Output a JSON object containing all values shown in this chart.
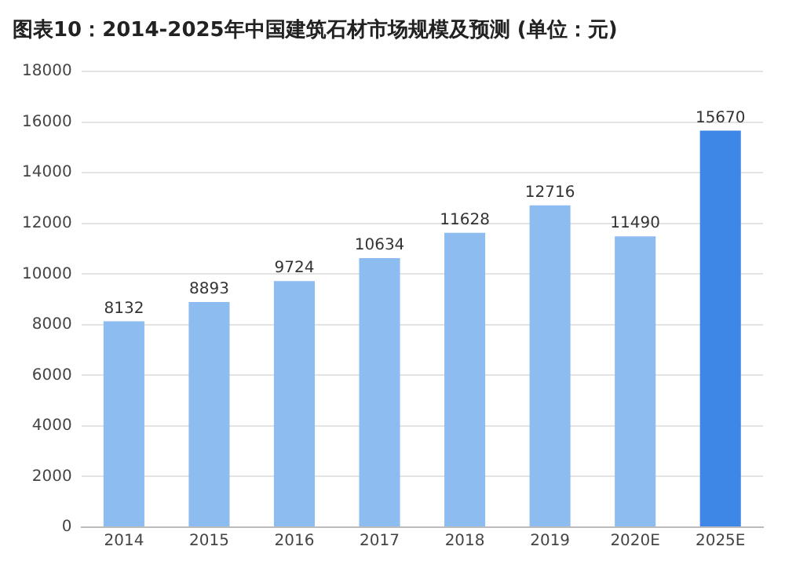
{
  "chart_data": {
    "type": "bar",
    "title": "图表10：2014-2025年中国建筑石材市场规模及预测 (单位：元)",
    "categories": [
      "2014",
      "2015",
      "2016",
      "2017",
      "2018",
      "2019",
      "2020E",
      "2025E"
    ],
    "values": [
      8132,
      8893,
      9724,
      10634,
      11628,
      12716,
      11490,
      15670
    ],
    "colors": [
      "#8dbdf0",
      "#8dbdf0",
      "#8dbdf0",
      "#8dbdf0",
      "#8dbdf0",
      "#8dbdf0",
      "#8dbdf0",
      "#3e87e6"
    ],
    "ylim": [
      0,
      18000
    ],
    "yticks": [
      0,
      2000,
      4000,
      6000,
      8000,
      10000,
      12000,
      14000,
      16000,
      18000
    ],
    "grid": "y",
    "data_labels": true,
    "legend": false
  }
}
